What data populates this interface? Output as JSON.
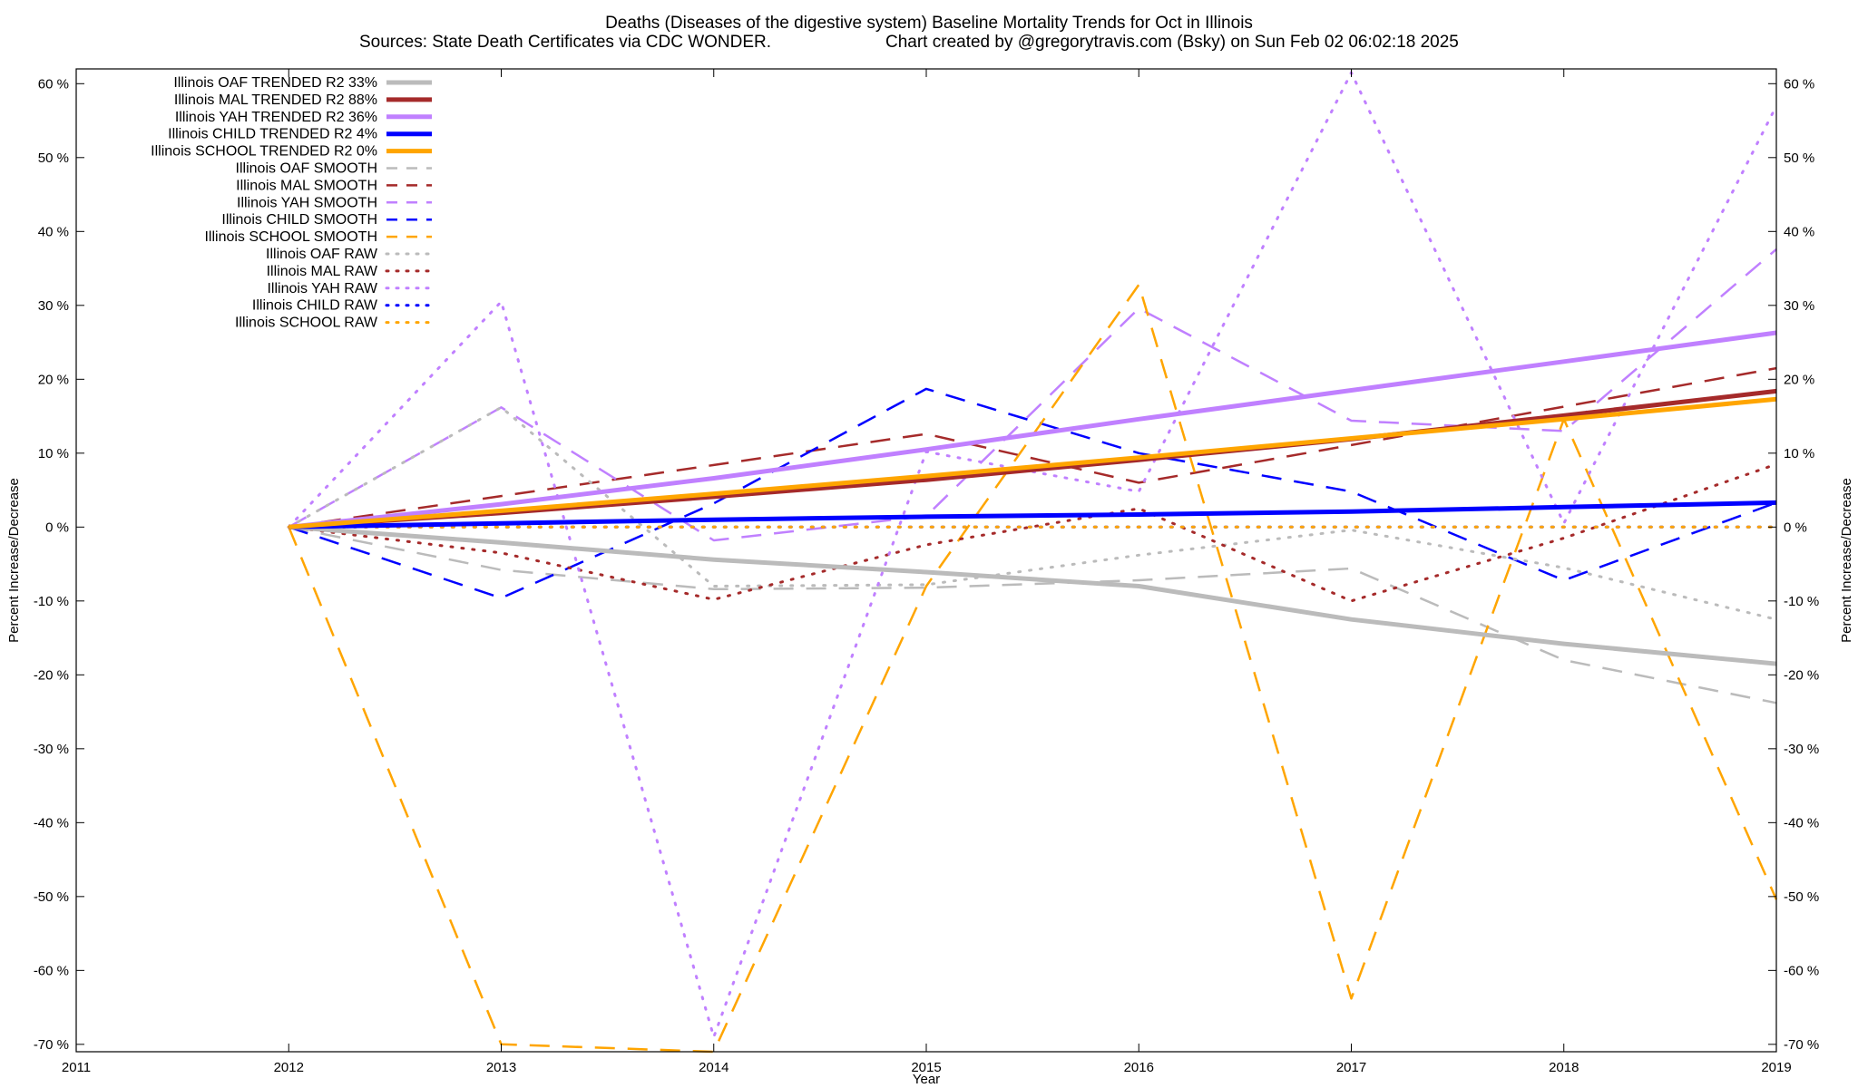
{
  "chart_data": {
    "type": "line",
    "title": "Deaths (Diseases of the digestive system)  Baseline Mortality Trends for Oct in Illinois",
    "subtitle_left": "Sources: State Death Certificates via CDC WONDER.",
    "subtitle_right": "Chart created by @gregorytravis.com (Bsky) on Sun Feb 02 06:02:18 2025",
    "xlabel": "Year",
    "ylabel": "Percent Increase/Decrease",
    "y2label": "Percent Increase/Decrease",
    "xlim": [
      2011,
      2019
    ],
    "ylim": [
      -71,
      62
    ],
    "x_ticks": [
      "2011",
      "2012",
      "2013",
      "2014",
      "2015",
      "2016",
      "2017",
      "2018",
      "2019"
    ],
    "y_ticks": [
      60,
      50,
      40,
      30,
      20,
      10,
      0,
      -10,
      -20,
      -30,
      -40,
      -50,
      -60,
      -70
    ],
    "y_tick_suffix": " %",
    "x": [
      2012,
      2013,
      2014,
      2015,
      2016,
      2017,
      2018,
      2019
    ],
    "legend_position": "top-left",
    "series": [
      {
        "name": "Illinois OAF TRENDED R2  33%",
        "style": "solid",
        "color": "#bbbbbb",
        "values": [
          0,
          -2.1,
          -4.4,
          -6.1,
          -8.0,
          -12.5,
          -15.8,
          -18.5
        ]
      },
      {
        "name": "Illinois MAL TRENDED R2  88%",
        "style": "solid",
        "color": "#a52a2a",
        "values": [
          0,
          1.9,
          4.1,
          6.4,
          9.1,
          11.9,
          15.1,
          18.4
        ]
      },
      {
        "name": "Illinois YAH TRENDED R2  36%",
        "style": "solid",
        "color": "#c080ff",
        "values": [
          0,
          3.1,
          6.6,
          10.5,
          14.6,
          18.5,
          22.4,
          26.3
        ]
      },
      {
        "name": "Illinois CHILD TRENDED R2   4%",
        "style": "solid",
        "color": "#0000ff",
        "values": [
          0,
          0.5,
          1.0,
          1.4,
          1.7,
          2.1,
          2.7,
          3.3
        ]
      },
      {
        "name": "Illinois SCHOOL TRENDED R2   0%",
        "style": "solid",
        "color": "#ffa500",
        "values": [
          0,
          2.2,
          4.5,
          6.9,
          9.4,
          12.0,
          14.6,
          17.3
        ]
      },
      {
        "name": "Illinois OAF SMOOTH",
        "style": "dashed",
        "color": "#bbbbbb",
        "values": [
          0,
          -5.8,
          -8.4,
          -8.2,
          -7.2,
          -5.6,
          -18.0,
          -23.8
        ]
      },
      {
        "name": "Illinois MAL SMOOTH",
        "style": "dashed",
        "color": "#a52a2a",
        "values": [
          0,
          4.2,
          8.4,
          12.6,
          6.0,
          11.1,
          16.3,
          21.5
        ]
      },
      {
        "name": "Illinois YAH SMOOTH",
        "style": "dashed",
        "color": "#c080ff",
        "values": [
          0,
          16.2,
          -1.8,
          1.5,
          29.6,
          14.4,
          13.0,
          37.6
        ]
      },
      {
        "name": "Illinois CHILD SMOOTH",
        "style": "dashed",
        "color": "#0000ff",
        "values": [
          0,
          -9.6,
          3.2,
          18.7,
          10.0,
          4.8,
          -7.2,
          3.3
        ]
      },
      {
        "name": "Illinois SCHOOL SMOOTH",
        "style": "dashed",
        "color": "#ffa500",
        "values": [
          0,
          -70.0,
          -71.0,
          -8.0,
          32.8,
          -63.8,
          14.6,
          -50.4
        ]
      },
      {
        "name": "Illinois OAF RAW",
        "style": "dotted",
        "color": "#bbbbbb",
        "values": [
          0,
          16.2,
          -8.0,
          -7.8,
          -3.8,
          -0.4,
          -5.5,
          -12.5
        ]
      },
      {
        "name": "Illinois MAL RAW",
        "style": "dotted",
        "color": "#a52a2a",
        "values": [
          0,
          -3.5,
          -9.8,
          -2.4,
          2.5,
          -10.0,
          -1.5,
          8.5
        ]
      },
      {
        "name": "Illinois YAH RAW",
        "style": "dotted",
        "color": "#c080ff",
        "values": [
          0,
          30.5,
          -69.0,
          10.2,
          4.8,
          61.5,
          0.5,
          57.0
        ]
      },
      {
        "name": "Illinois CHILD RAW",
        "style": "dotted",
        "color": "#0000ff",
        "values": [
          0,
          0,
          0,
          0,
          0,
          0,
          0,
          0
        ]
      },
      {
        "name": "Illinois SCHOOL RAW",
        "style": "dotted",
        "color": "#ffa500",
        "values": [
          0,
          0,
          0,
          0,
          0,
          0,
          0,
          0
        ]
      }
    ]
  }
}
